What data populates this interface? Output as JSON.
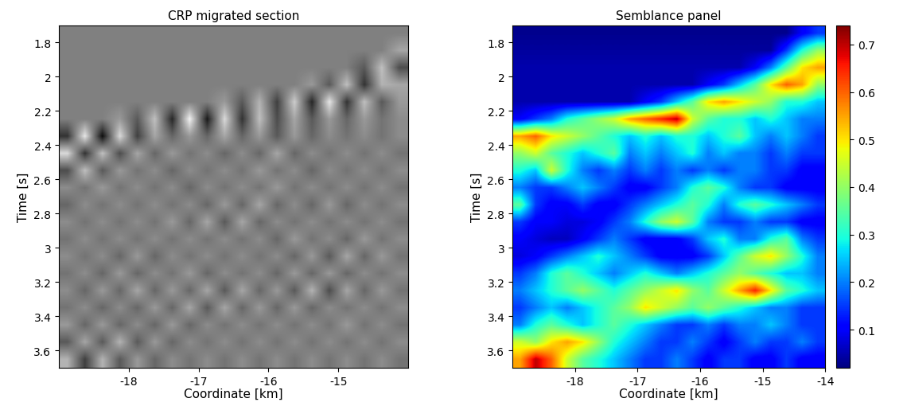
{
  "chart_data": [
    {
      "type": "heatmap",
      "title": "CRP migrated section",
      "x_label": "Coordinate [km]",
      "y_label": "Time [s]",
      "color": "gray",
      "xlim": [
        -19,
        -14
      ],
      "ylim": [
        3.7,
        1.7
      ],
      "xticks": [
        -18,
        -17,
        -16,
        -15
      ],
      "yticks": [
        1.8,
        2,
        2.2,
        2.4,
        2.6,
        2.8,
        3,
        3.2,
        3.4,
        3.6
      ],
      "value_range": [
        -1,
        1
      ],
      "cells": [
        [
          0,
          0,
          0,
          0,
          0,
          0,
          0,
          0,
          0,
          0,
          0,
          0,
          0,
          0,
          0,
          0,
          0,
          0,
          0,
          0
        ],
        [
          0,
          0,
          0,
          0,
          0,
          0,
          0,
          0,
          0,
          0,
          0,
          0,
          0,
          0,
          0,
          0,
          0,
          0,
          0,
          0.3
        ],
        [
          0,
          0,
          0,
          0,
          0,
          0,
          0,
          0,
          0,
          0,
          0,
          0,
          0,
          0,
          0,
          0,
          0,
          -0.3,
          0.5,
          -0.4
        ],
        [
          0,
          0,
          0,
          0,
          0,
          0,
          0,
          0,
          0,
          0,
          0,
          0,
          0,
          0,
          0.2,
          -0.3,
          0.5,
          -0.6,
          0.4,
          0.3
        ],
        [
          0,
          0,
          0,
          0,
          0,
          0,
          0,
          0,
          0,
          0.2,
          -0.3,
          0.4,
          -0.5,
          0.6,
          -0.7,
          0.8,
          -0.6,
          0.5,
          -0.3,
          0.2
        ],
        [
          0,
          0,
          0,
          0.2,
          -0.3,
          0.5,
          -0.7,
          0.9,
          -0.8,
          0.7,
          -0.6,
          0.5,
          -0.4,
          0.3,
          -0.3,
          0.2,
          -0.2,
          0.2,
          -0.1,
          0.1
        ],
        [
          -0.6,
          0.8,
          -0.9,
          0.7,
          -0.5,
          0.3,
          -0.2,
          0.2,
          -0.2,
          0.3,
          -0.2,
          0.2,
          -0.3,
          0.2,
          -0.2,
          0.1,
          -0.1,
          0.1,
          -0.1,
          0.1
        ],
        [
          0.7,
          -0.6,
          0.5,
          -0.4,
          0.3,
          -0.2,
          0.2,
          -0.1,
          0.1,
          -0.2,
          0.1,
          -0.2,
          0.3,
          -0.2,
          0.1,
          -0.1,
          0.1,
          -0.1,
          0.1,
          -0.1
        ],
        [
          -0.4,
          0.5,
          -0.3,
          0.2,
          -0.1,
          0.1,
          -0.2,
          0.1,
          -0.1,
          0.1,
          -0.1,
          0.2,
          -0.1,
          0.1,
          -0.2,
          0.1,
          -0.1,
          0.1,
          -0.1,
          0.1
        ],
        [
          0.1,
          -0.1,
          0.2,
          -0.1,
          0.1,
          -0.1,
          0.1,
          -0.2,
          0.1,
          -0.1,
          0.1,
          -0.1,
          0.2,
          -0.1,
          0.1,
          -0.1,
          0.1,
          -0.1,
          0.1,
          -0.1
        ],
        [
          -0.2,
          0.1,
          -0.1,
          0.1,
          -0.1,
          0.1,
          -0.1,
          0.1,
          -0.2,
          0.2,
          -0.2,
          0.3,
          -0.2,
          0.1,
          -0.2,
          0.2,
          -0.2,
          0.1,
          -0.1,
          0.1
        ],
        [
          0.1,
          -0.1,
          0.1,
          -0.1,
          0.1,
          -0.1,
          0.2,
          -0.2,
          0.3,
          -0.3,
          0.3,
          -0.2,
          0.1,
          -0.1,
          0.1,
          -0.1,
          0.1,
          -0.1,
          0.1,
          -0.1
        ],
        [
          -0.1,
          0.1,
          -0.1,
          0.1,
          -0.1,
          0.1,
          -0.1,
          0.1,
          -0.1,
          0.1,
          -0.1,
          0.1,
          -0.2,
          0.2,
          -0.1,
          0.1,
          -0.2,
          0.2,
          -0.1,
          0.1
        ],
        [
          0.1,
          -0.1,
          0.1,
          -0.2,
          0.2,
          -0.2,
          0.1,
          -0.1,
          0.1,
          -0.1,
          0.1,
          -0.1,
          0.1,
          -0.2,
          0.2,
          -0.3,
          0.3,
          -0.2,
          0.2,
          -0.1
        ],
        [
          -0.1,
          0.1,
          -0.2,
          0.2,
          -0.2,
          0.1,
          -0.1,
          0.2,
          -0.2,
          0.1,
          -0.1,
          0.1,
          -0.2,
          0.2,
          -0.2,
          0.2,
          -0.2,
          0.1,
          -0.1,
          0.1
        ],
        [
          0.1,
          -0.2,
          0.2,
          -0.2,
          0.3,
          -0.2,
          0.2,
          -0.2,
          0.3,
          -0.3,
          0.3,
          -0.2,
          0.2,
          -0.3,
          0.4,
          -0.4,
          0.3,
          -0.2,
          0.2,
          -0.1
        ],
        [
          -0.1,
          0.1,
          -0.2,
          0.1,
          -0.2,
          0.2,
          -0.2,
          0.3,
          -0.3,
          0.3,
          -0.2,
          0.2,
          -0.2,
          0.2,
          -0.2,
          0.1,
          -0.1,
          0.1,
          -0.1,
          0.1
        ],
        [
          0.2,
          -0.2,
          0.2,
          -0.2,
          0.1,
          -0.2,
          0.2,
          -0.2,
          0.1,
          -0.1,
          0.1,
          -0.1,
          0.1,
          -0.1,
          0.1,
          -0.1,
          0.2,
          -0.1,
          0.1,
          -0.1
        ],
        [
          -0.3,
          0.3,
          -0.3,
          0.4,
          -0.3,
          0.2,
          -0.2,
          0.1,
          -0.1,
          0.1,
          -0.1,
          0.1,
          -0.1,
          0.1,
          -0.1,
          0.1,
          -0.1,
          0.1,
          -0.1,
          0.1
        ],
        [
          0.4,
          -0.5,
          0.4,
          -0.3,
          0.2,
          -0.2,
          0.1,
          -0.1,
          0.1,
          -0.1,
          0.1,
          -0.1,
          0.1,
          -0.1,
          0.1,
          -0.1,
          0.1,
          -0.1,
          0.1,
          -0.1
        ]
      ]
    },
    {
      "type": "heatmap",
      "title": "Semblance panel",
      "x_label": "Coordinate [km]",
      "y_label": "Time [s]",
      "color": "jet",
      "xlim": [
        -19,
        -14
      ],
      "ylim": [
        3.7,
        1.7
      ],
      "xticks": [
        -18,
        -17,
        -16,
        -15,
        -14
      ],
      "yticks": [
        1.8,
        2,
        2.2,
        2.4,
        2.6,
        2.8,
        3,
        3.2,
        3.4,
        3.6
      ],
      "value_range": [
        0.02,
        0.74
      ],
      "colorbar_ticks": [
        0.1,
        0.2,
        0.3,
        0.4,
        0.5,
        0.6,
        0.7
      ],
      "cells": [
        [
          0.03,
          0.03,
          0.03,
          0.03,
          0.03,
          0.03,
          0.03,
          0.03,
          0.03,
          0.03,
          0.03,
          0.03,
          0.03,
          0.03,
          0.03,
          0.03,
          0.03,
          0.03,
          0.1,
          0.15
        ],
        [
          0.04,
          0.04,
          0.04,
          0.04,
          0.04,
          0.04,
          0.04,
          0.04,
          0.04,
          0.04,
          0.04,
          0.04,
          0.04,
          0.04,
          0.04,
          0.04,
          0.04,
          0.15,
          0.3,
          0.4
        ],
        [
          0.05,
          0.05,
          0.05,
          0.05,
          0.05,
          0.05,
          0.05,
          0.05,
          0.05,
          0.05,
          0.05,
          0.05,
          0.05,
          0.05,
          0.05,
          0.1,
          0.2,
          0.35,
          0.5,
          0.55
        ],
        [
          0.05,
          0.05,
          0.05,
          0.05,
          0.05,
          0.05,
          0.05,
          0.05,
          0.05,
          0.05,
          0.05,
          0.05,
          0.1,
          0.15,
          0.25,
          0.35,
          0.5,
          0.6,
          0.55,
          0.4
        ],
        [
          0.05,
          0.05,
          0.05,
          0.05,
          0.05,
          0.05,
          0.05,
          0.05,
          0.1,
          0.15,
          0.25,
          0.35,
          0.5,
          0.55,
          0.5,
          0.45,
          0.4,
          0.3,
          0.3,
          0.25
        ],
        [
          0.1,
          0.15,
          0.2,
          0.3,
          0.35,
          0.4,
          0.45,
          0.55,
          0.6,
          0.65,
          0.7,
          0.45,
          0.35,
          0.3,
          0.3,
          0.25,
          0.3,
          0.25,
          0.2,
          0.2
        ],
        [
          0.55,
          0.6,
          0.5,
          0.45,
          0.4,
          0.35,
          0.3,
          0.25,
          0.3,
          0.25,
          0.3,
          0.3,
          0.25,
          0.3,
          0.35,
          0.25,
          0.2,
          0.25,
          0.2,
          0.15
        ],
        [
          0.4,
          0.45,
          0.35,
          0.3,
          0.25,
          0.3,
          0.35,
          0.2,
          0.25,
          0.2,
          0.25,
          0.3,
          0.2,
          0.25,
          0.2,
          0.2,
          0.15,
          0.2,
          0.15,
          0.15
        ],
        [
          0.3,
          0.25,
          0.45,
          0.3,
          0.2,
          0.15,
          0.2,
          0.15,
          0.2,
          0.15,
          0.2,
          0.15,
          0.2,
          0.15,
          0.2,
          0.2,
          0.15,
          0.15,
          0.1,
          0.1
        ],
        [
          0.2,
          0.15,
          0.15,
          0.2,
          0.25,
          0.2,
          0.15,
          0.1,
          0.1,
          0.15,
          0.2,
          0.3,
          0.35,
          0.3,
          0.2,
          0.15,
          0.15,
          0.1,
          0.1,
          0.1
        ],
        [
          0.35,
          0.15,
          0.1,
          0.1,
          0.15,
          0.1,
          0.1,
          0.15,
          0.2,
          0.25,
          0.3,
          0.35,
          0.3,
          0.2,
          0.3,
          0.35,
          0.3,
          0.25,
          0.2,
          0.15
        ],
        [
          0.15,
          0.1,
          0.1,
          0.08,
          0.08,
          0.1,
          0.15,
          0.2,
          0.3,
          0.4,
          0.45,
          0.35,
          0.2,
          0.15,
          0.15,
          0.2,
          0.15,
          0.15,
          0.1,
          0.1
        ],
        [
          0.1,
          0.08,
          0.06,
          0.06,
          0.1,
          0.15,
          0.2,
          0.15,
          0.1,
          0.1,
          0.1,
          0.15,
          0.25,
          0.3,
          0.2,
          0.2,
          0.3,
          0.35,
          0.2,
          0.15
        ],
        [
          0.08,
          0.1,
          0.15,
          0.2,
          0.25,
          0.3,
          0.25,
          0.2,
          0.15,
          0.1,
          0.1,
          0.1,
          0.15,
          0.25,
          0.35,
          0.45,
          0.5,
          0.4,
          0.3,
          0.2
        ],
        [
          0.15,
          0.2,
          0.3,
          0.35,
          0.3,
          0.25,
          0.2,
          0.25,
          0.3,
          0.25,
          0.2,
          0.25,
          0.3,
          0.35,
          0.4,
          0.35,
          0.3,
          0.25,
          0.25,
          0.2
        ],
        [
          0.2,
          0.25,
          0.3,
          0.35,
          0.4,
          0.35,
          0.3,
          0.35,
          0.4,
          0.45,
          0.5,
          0.4,
          0.35,
          0.45,
          0.55,
          0.65,
          0.5,
          0.35,
          0.3,
          0.25
        ],
        [
          0.15,
          0.2,
          0.25,
          0.2,
          0.25,
          0.3,
          0.35,
          0.4,
          0.5,
          0.45,
          0.4,
          0.35,
          0.4,
          0.35,
          0.3,
          0.25,
          0.2,
          0.2,
          0.15,
          0.15
        ],
        [
          0.2,
          0.3,
          0.35,
          0.3,
          0.25,
          0.3,
          0.35,
          0.3,
          0.25,
          0.2,
          0.15,
          0.15,
          0.2,
          0.15,
          0.2,
          0.2,
          0.25,
          0.2,
          0.15,
          0.15
        ],
        [
          0.45,
          0.4,
          0.5,
          0.55,
          0.5,
          0.4,
          0.3,
          0.25,
          0.2,
          0.15,
          0.15,
          0.2,
          0.15,
          0.1,
          0.15,
          0.2,
          0.15,
          0.15,
          0.2,
          0.15
        ],
        [
          0.55,
          0.7,
          0.6,
          0.45,
          0.35,
          0.3,
          0.25,
          0.2,
          0.15,
          0.15,
          0.2,
          0.15,
          0.1,
          0.15,
          0.15,
          0.1,
          0.1,
          0.15,
          0.1,
          0.1
        ]
      ]
    }
  ]
}
